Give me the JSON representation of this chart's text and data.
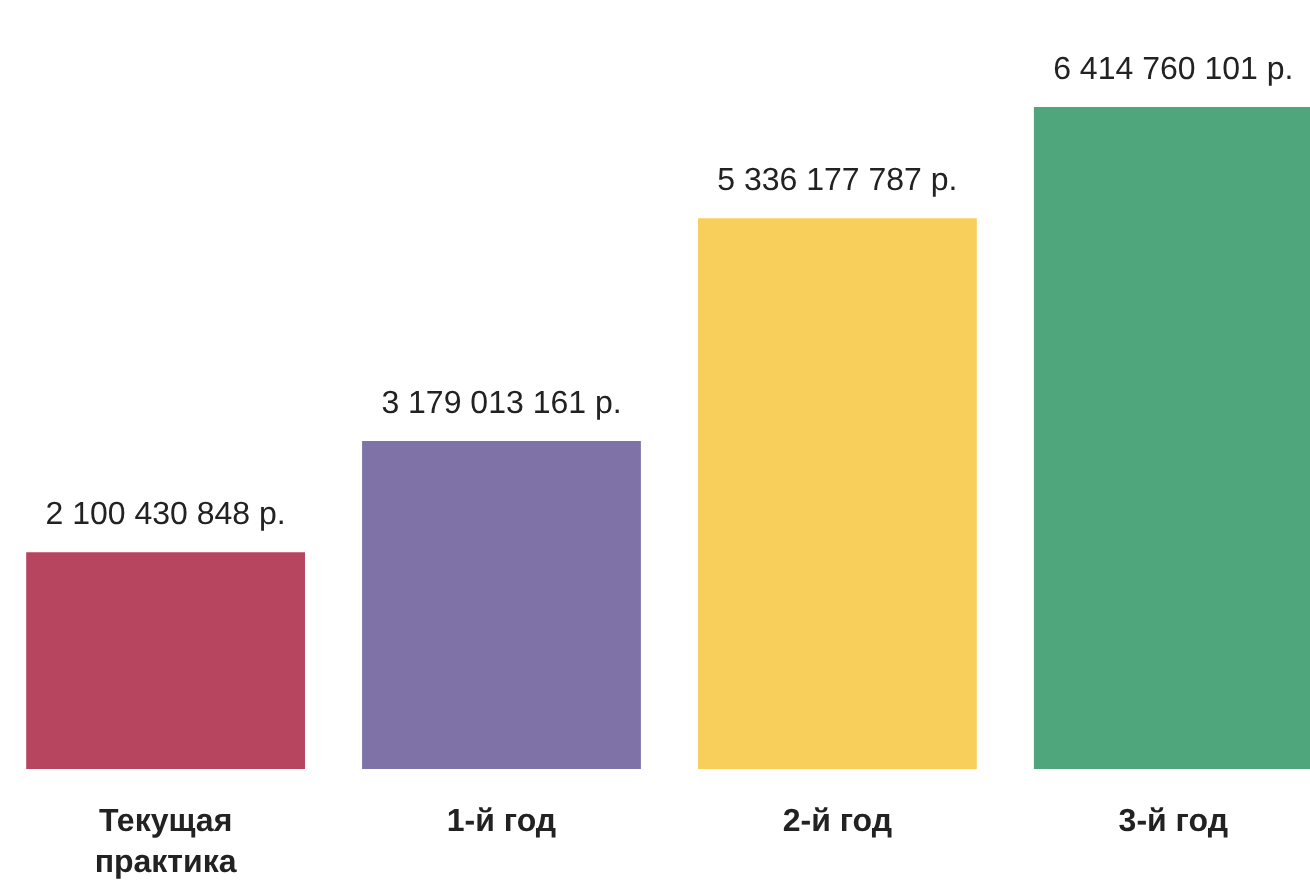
{
  "chart_data": {
    "type": "bar",
    "categories": [
      "Текущая практика",
      "1-й год",
      "2-й год",
      "3-й год"
    ],
    "values": [
      2100430848,
      3179013161,
      5336177787,
      6414760101
    ],
    "colors": [
      "#b8455f",
      "#7e72a6",
      "#f7cf5a",
      "#4fa57c"
    ],
    "value_labels": [
      "2 100 430 848 р.",
      "3 179 013 161 р.",
      "5 336 177 787 р.",
      "6 414 760 101 р."
    ],
    "grid": false
  }
}
